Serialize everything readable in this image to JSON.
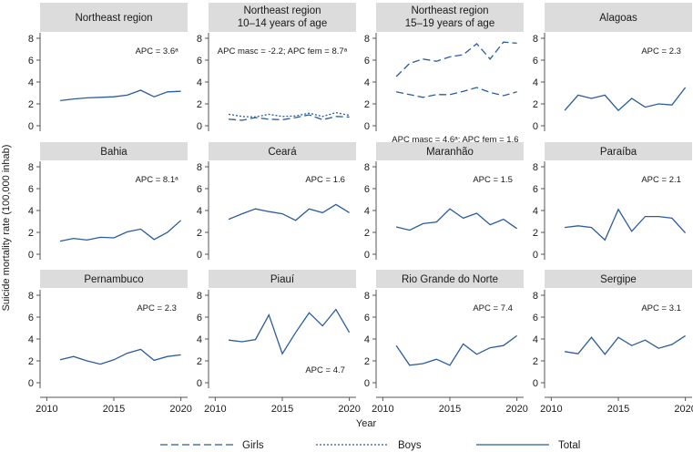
{
  "figure": {
    "xlabel": "Year",
    "ylabel": "Suicide mortality rate (100,000 inhab)",
    "line_color": "#2b5c9b",
    "strip_color": "#dcdcdc"
  },
  "legend": [
    {
      "key": "girls",
      "label": "Girls",
      "style": "dashed"
    },
    {
      "key": "boys",
      "label": "Boys",
      "style": "dotted"
    },
    {
      "key": "total",
      "label": "Total",
      "style": "solid"
    }
  ],
  "chart_data": [
    {
      "type": "line",
      "panel": "Northeast region",
      "x": [
        2011,
        2012,
        2013,
        2014,
        2015,
        2016,
        2017,
        2018,
        2019,
        2020
      ],
      "xlim": [
        2009.5,
        2020.5
      ],
      "ylim": [
        -0.5,
        8.5
      ],
      "yticks": [
        0,
        2,
        4,
        6,
        8
      ],
      "xticks": [
        2010,
        2015,
        2020
      ],
      "series": [
        {
          "name": "Total",
          "style": "solid",
          "values": [
            2.3,
            2.45,
            2.55,
            2.6,
            2.65,
            2.8,
            3.25,
            2.65,
            3.1,
            3.15
          ]
        }
      ],
      "annotations": [
        {
          "text": "APC = 3.6ᵃ",
          "x": 2018.2,
          "y": 6.6
        }
      ]
    },
    {
      "type": "line",
      "panel": "Northeast region\n10–14 years of age",
      "x": [
        2011,
        2012,
        2013,
        2014,
        2015,
        2016,
        2017,
        2018,
        2019,
        2020
      ],
      "xlim": [
        2009.5,
        2020.5
      ],
      "ylim": [
        -0.5,
        8.5
      ],
      "yticks": [
        0,
        2,
        4,
        6,
        8
      ],
      "xticks": [
        2010,
        2015,
        2020
      ],
      "series": [
        {
          "name": "Girls",
          "style": "dashed",
          "values": [
            0.6,
            0.5,
            0.75,
            0.6,
            0.55,
            0.75,
            1.0,
            0.55,
            0.85,
            0.8
          ]
        },
        {
          "name": "Boys",
          "style": "dotted",
          "values": [
            1.05,
            0.85,
            0.8,
            1.05,
            0.85,
            0.9,
            1.15,
            0.85,
            1.2,
            0.95
          ]
        }
      ],
      "annotations": [
        {
          "text": "APC masc = -2.2; APC fem = 8.7ᵃ",
          "x": 2015,
          "y": 6.6
        }
      ]
    },
    {
      "type": "line",
      "panel": "Northeast region\n15–19 years of age",
      "x": [
        2011,
        2012,
        2013,
        2014,
        2015,
        2016,
        2017,
        2018,
        2019,
        2020
      ],
      "xlim": [
        2009.5,
        2020.5
      ],
      "ylim": [
        -0.5,
        8.5
      ],
      "yticks": [
        0,
        2,
        4,
        6,
        8
      ],
      "xticks": [
        2010,
        2015,
        2020
      ],
      "series": [
        {
          "name": "Girls",
          "style": "dashed",
          "values": [
            3.1,
            2.85,
            2.6,
            2.85,
            2.85,
            3.15,
            3.5,
            3.05,
            2.75,
            3.1
          ]
        },
        {
          "name": "Boys",
          "style": "dashed",
          "values": [
            4.5,
            5.7,
            6.1,
            5.9,
            6.3,
            6.5,
            7.5,
            6.1,
            7.65,
            7.55
          ]
        }
      ],
      "annotations": [
        {
          "text": "APC masc = 4.6ᵃ; APC fem = 1.6",
          "x": 2015.4,
          "y": -1.5
        }
      ]
    },
    {
      "type": "line",
      "panel": "Alagoas",
      "x": [
        2011,
        2012,
        2013,
        2014,
        2015,
        2016,
        2017,
        2018,
        2019,
        2020
      ],
      "xlim": [
        2009.5,
        2020.5
      ],
      "ylim": [
        -0.5,
        8.5
      ],
      "yticks": [
        0,
        2,
        4,
        6,
        8
      ],
      "xticks": [
        2010,
        2015,
        2020
      ],
      "series": [
        {
          "name": "Total",
          "style": "solid",
          "values": [
            1.4,
            2.8,
            2.5,
            2.8,
            1.4,
            2.5,
            1.7,
            2.0,
            1.9,
            3.5
          ]
        }
      ],
      "annotations": [
        {
          "text": "APC = 2.3",
          "x": 2018.2,
          "y": 6.6
        }
      ]
    },
    {
      "type": "line",
      "panel": "Bahia",
      "x": [
        2011,
        2012,
        2013,
        2014,
        2015,
        2016,
        2017,
        2018,
        2019,
        2020
      ],
      "xlim": [
        2009.5,
        2020.5
      ],
      "ylim": [
        -0.5,
        8.5
      ],
      "yticks": [
        0,
        2,
        4,
        6,
        8
      ],
      "xticks": [
        2010,
        2015,
        2020
      ],
      "series": [
        {
          "name": "Total",
          "style": "solid",
          "values": [
            1.2,
            1.45,
            1.3,
            1.55,
            1.5,
            2.05,
            2.3,
            1.35,
            2.0,
            3.1
          ]
        }
      ],
      "annotations": [
        {
          "text": "APC = 8.1ᵃ",
          "x": 2018.2,
          "y": 6.6
        }
      ]
    },
    {
      "type": "line",
      "panel": "Ceará",
      "x": [
        2011,
        2012,
        2013,
        2014,
        2015,
        2016,
        2017,
        2018,
        2019,
        2020
      ],
      "xlim": [
        2009.5,
        2020.5
      ],
      "ylim": [
        -0.5,
        8.5
      ],
      "yticks": [
        0,
        2,
        4,
        6,
        8
      ],
      "xticks": [
        2010,
        2015,
        2020
      ],
      "series": [
        {
          "name": "Total",
          "style": "solid",
          "values": [
            3.2,
            3.7,
            4.15,
            3.9,
            3.7,
            3.1,
            4.15,
            3.8,
            4.55,
            3.8
          ]
        }
      ],
      "annotations": [
        {
          "text": "APC = 1.6",
          "x": 2018.2,
          "y": 6.6
        }
      ]
    },
    {
      "type": "line",
      "panel": "Maranhão",
      "x": [
        2011,
        2012,
        2013,
        2014,
        2015,
        2016,
        2017,
        2018,
        2019,
        2020
      ],
      "xlim": [
        2009.5,
        2020.5
      ],
      "ylim": [
        -0.5,
        8.5
      ],
      "yticks": [
        0,
        2,
        4,
        6,
        8
      ],
      "xticks": [
        2010,
        2015,
        2020
      ],
      "series": [
        {
          "name": "Total",
          "style": "solid",
          "values": [
            2.5,
            2.2,
            2.8,
            2.95,
            4.15,
            3.3,
            3.75,
            2.7,
            3.2,
            2.35
          ]
        }
      ],
      "annotations": [
        {
          "text": "APC = 1.5",
          "x": 2018.2,
          "y": 6.6
        }
      ]
    },
    {
      "type": "line",
      "panel": "Paraíba",
      "x": [
        2011,
        2012,
        2013,
        2014,
        2015,
        2016,
        2017,
        2018,
        2019,
        2020
      ],
      "xlim": [
        2009.5,
        2020.5
      ],
      "ylim": [
        -0.5,
        8.5
      ],
      "yticks": [
        0,
        2,
        4,
        6,
        8
      ],
      "xticks": [
        2010,
        2015,
        2020
      ],
      "series": [
        {
          "name": "Total",
          "style": "solid",
          "values": [
            2.45,
            2.6,
            2.45,
            1.3,
            4.1,
            2.1,
            3.45,
            3.45,
            3.3,
            1.95
          ]
        }
      ],
      "annotations": [
        {
          "text": "APC = 2.1",
          "x": 2018.2,
          "y": 6.6
        }
      ]
    },
    {
      "type": "line",
      "panel": "Pernambuco",
      "x": [
        2011,
        2012,
        2013,
        2014,
        2015,
        2016,
        2017,
        2018,
        2019,
        2020
      ],
      "xlim": [
        2009.5,
        2020.5
      ],
      "ylim": [
        -0.5,
        8.5
      ],
      "yticks": [
        0,
        2,
        4,
        6,
        8
      ],
      "xticks": [
        2010,
        2015,
        2020
      ],
      "series": [
        {
          "name": "Total",
          "style": "solid",
          "values": [
            2.1,
            2.4,
            2.0,
            1.7,
            2.1,
            2.7,
            3.05,
            2.05,
            2.4,
            2.55
          ]
        }
      ],
      "annotations": [
        {
          "text": "APC = 2.3",
          "x": 2018.2,
          "y": 6.6
        }
      ]
    },
    {
      "type": "line",
      "panel": "Piauí",
      "x": [
        2011,
        2012,
        2013,
        2014,
        2015,
        2016,
        2017,
        2018,
        2019,
        2020
      ],
      "xlim": [
        2009.5,
        2020.5
      ],
      "ylim": [
        -0.5,
        8.5
      ],
      "yticks": [
        0,
        2,
        4,
        6,
        8
      ],
      "xticks": [
        2010,
        2015,
        2020
      ],
      "series": [
        {
          "name": "Total",
          "style": "solid",
          "values": [
            3.9,
            3.75,
            3.95,
            6.2,
            2.65,
            4.6,
            6.4,
            5.2,
            6.7,
            4.6
          ]
        }
      ],
      "annotations": [
        {
          "text": "APC = 4.7",
          "x": 2018.2,
          "y": 0.9
        }
      ]
    },
    {
      "type": "line",
      "panel": "Rio Grande do Norte",
      "x": [
        2011,
        2012,
        2013,
        2014,
        2015,
        2016,
        2017,
        2018,
        2019,
        2020
      ],
      "xlim": [
        2009.5,
        2020.5
      ],
      "ylim": [
        -0.5,
        8.5
      ],
      "yticks": [
        0,
        2,
        4,
        6,
        8
      ],
      "xticks": [
        2010,
        2015,
        2020
      ],
      "series": [
        {
          "name": "Total",
          "style": "solid",
          "values": [
            3.4,
            1.6,
            1.75,
            2.15,
            1.6,
            3.55,
            2.6,
            3.2,
            3.4,
            4.3
          ]
        }
      ],
      "annotations": [
        {
          "text": "APC = 7.4",
          "x": 2018.2,
          "y": 6.6
        }
      ]
    },
    {
      "type": "line",
      "panel": "Sergipe",
      "x": [
        2011,
        2012,
        2013,
        2014,
        2015,
        2016,
        2017,
        2018,
        2019,
        2020
      ],
      "xlim": [
        2009.5,
        2020.5
      ],
      "ylim": [
        -0.5,
        8.5
      ],
      "yticks": [
        0,
        2,
        4,
        6,
        8
      ],
      "xticks": [
        2010,
        2015,
        2020
      ],
      "series": [
        {
          "name": "Total",
          "style": "solid",
          "values": [
            2.85,
            2.65,
            4.15,
            2.6,
            4.15,
            3.4,
            3.9,
            3.15,
            3.5,
            4.3
          ]
        }
      ],
      "annotations": [
        {
          "text": "APC = 3.1",
          "x": 2018.2,
          "y": 6.6
        }
      ]
    }
  ]
}
